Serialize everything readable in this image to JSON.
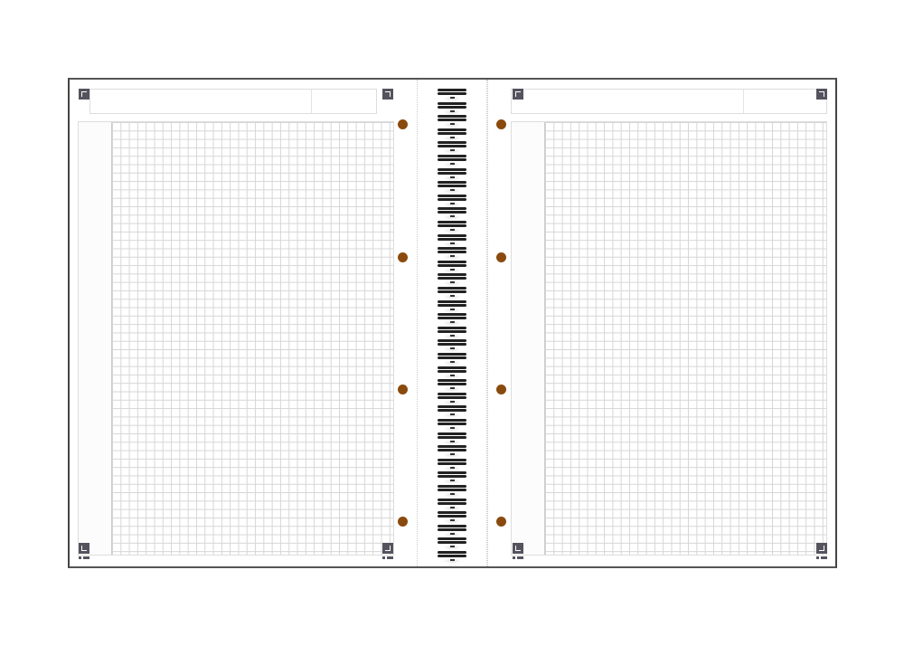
{
  "colors": {
    "cover_edge": "#444444",
    "grid_line": "#d6d6d6",
    "corner_mark": "#55535e",
    "punch_hole": "#8a4a0e",
    "spiral_wire": "#222222"
  },
  "icons": {
    "corner_marks": "scan-corner-marker-icon",
    "holes": "punch-hole-icon",
    "binding": "wire-spiral-icon"
  }
}
